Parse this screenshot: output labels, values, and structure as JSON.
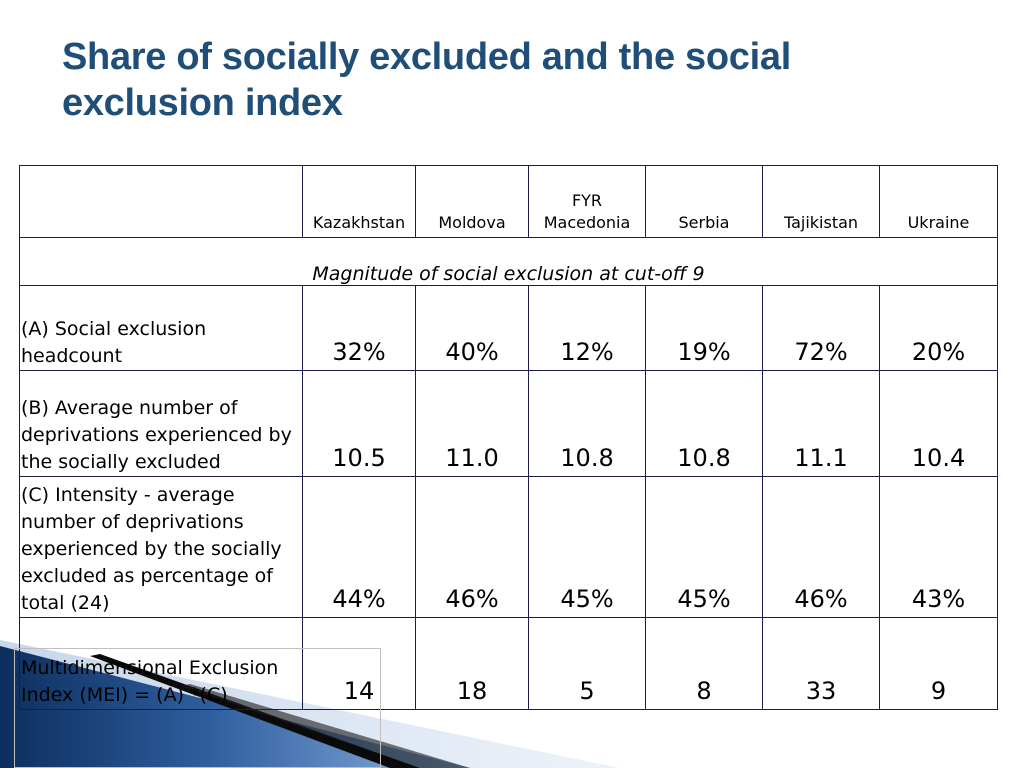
{
  "slide": {
    "title": "Share of socially excluded and the social exclusion index"
  },
  "table": {
    "columns": [
      "Kazakhstan",
      "Moldova",
      "FYR\nMacedonia",
      "Serbia",
      "Tajikistan",
      "Ukraine"
    ],
    "section_header": "Magnitude of social exclusion at cut-off 9",
    "rows": [
      {
        "label": "(A) Social exclusion headcount",
        "values": [
          "32%",
          "40%",
          "12%",
          "19%",
          "72%",
          "20%"
        ]
      },
      {
        "label": "(B) Average number of deprivations experienced by the socially excluded",
        "values": [
          "10.5",
          "11.0",
          "10.8",
          "10.8",
          "11.1",
          "10.4"
        ]
      },
      {
        "label": "(C) Intensity - average number of deprivations experienced by the socially excluded as percentage of total (24)",
        "values": [
          "44%",
          "46%",
          "45%",
          "45%",
          "46%",
          "43%"
        ]
      },
      {
        "label": "Multidimensional Exclusion Index (MEI) = (A) *(C)",
        "values": [
          "14",
          "18",
          "5",
          "8",
          "33",
          "9"
        ]
      }
    ]
  },
  "colors": {
    "title": "#1f4e79",
    "border": "#1c1c4a",
    "deco_dark": "#0d2f5e",
    "deco_light": "#6a9ad6"
  }
}
